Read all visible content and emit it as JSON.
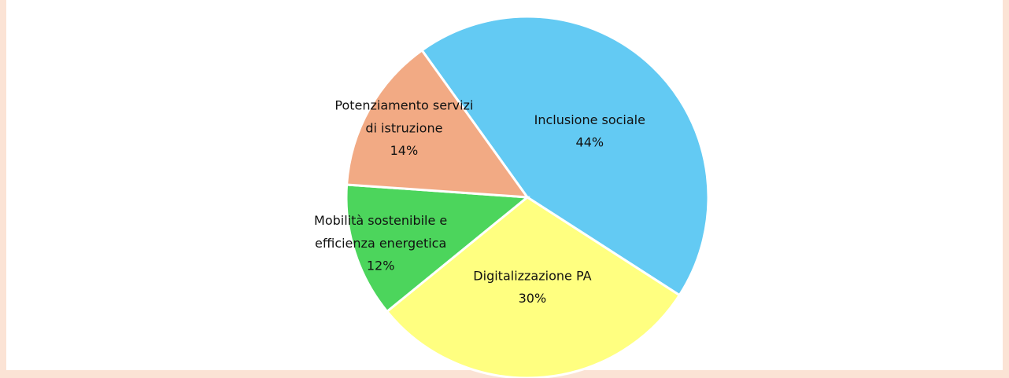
{
  "chart_data": {
    "type": "pie",
    "categories": [
      "Inclusione sociale",
      "Digitalizzazione PA",
      "Mobilità sostenibile e efficienza energetica",
      "Potenziamento servizi di istruzione"
    ],
    "values": [
      44,
      30,
      12,
      14
    ],
    "value_labels": [
      "44%",
      "30%",
      "12%",
      "14%"
    ],
    "colors": [
      "#63caf3",
      "#ffff80",
      "#4cd55c",
      "#f2aa84"
    ]
  }
}
